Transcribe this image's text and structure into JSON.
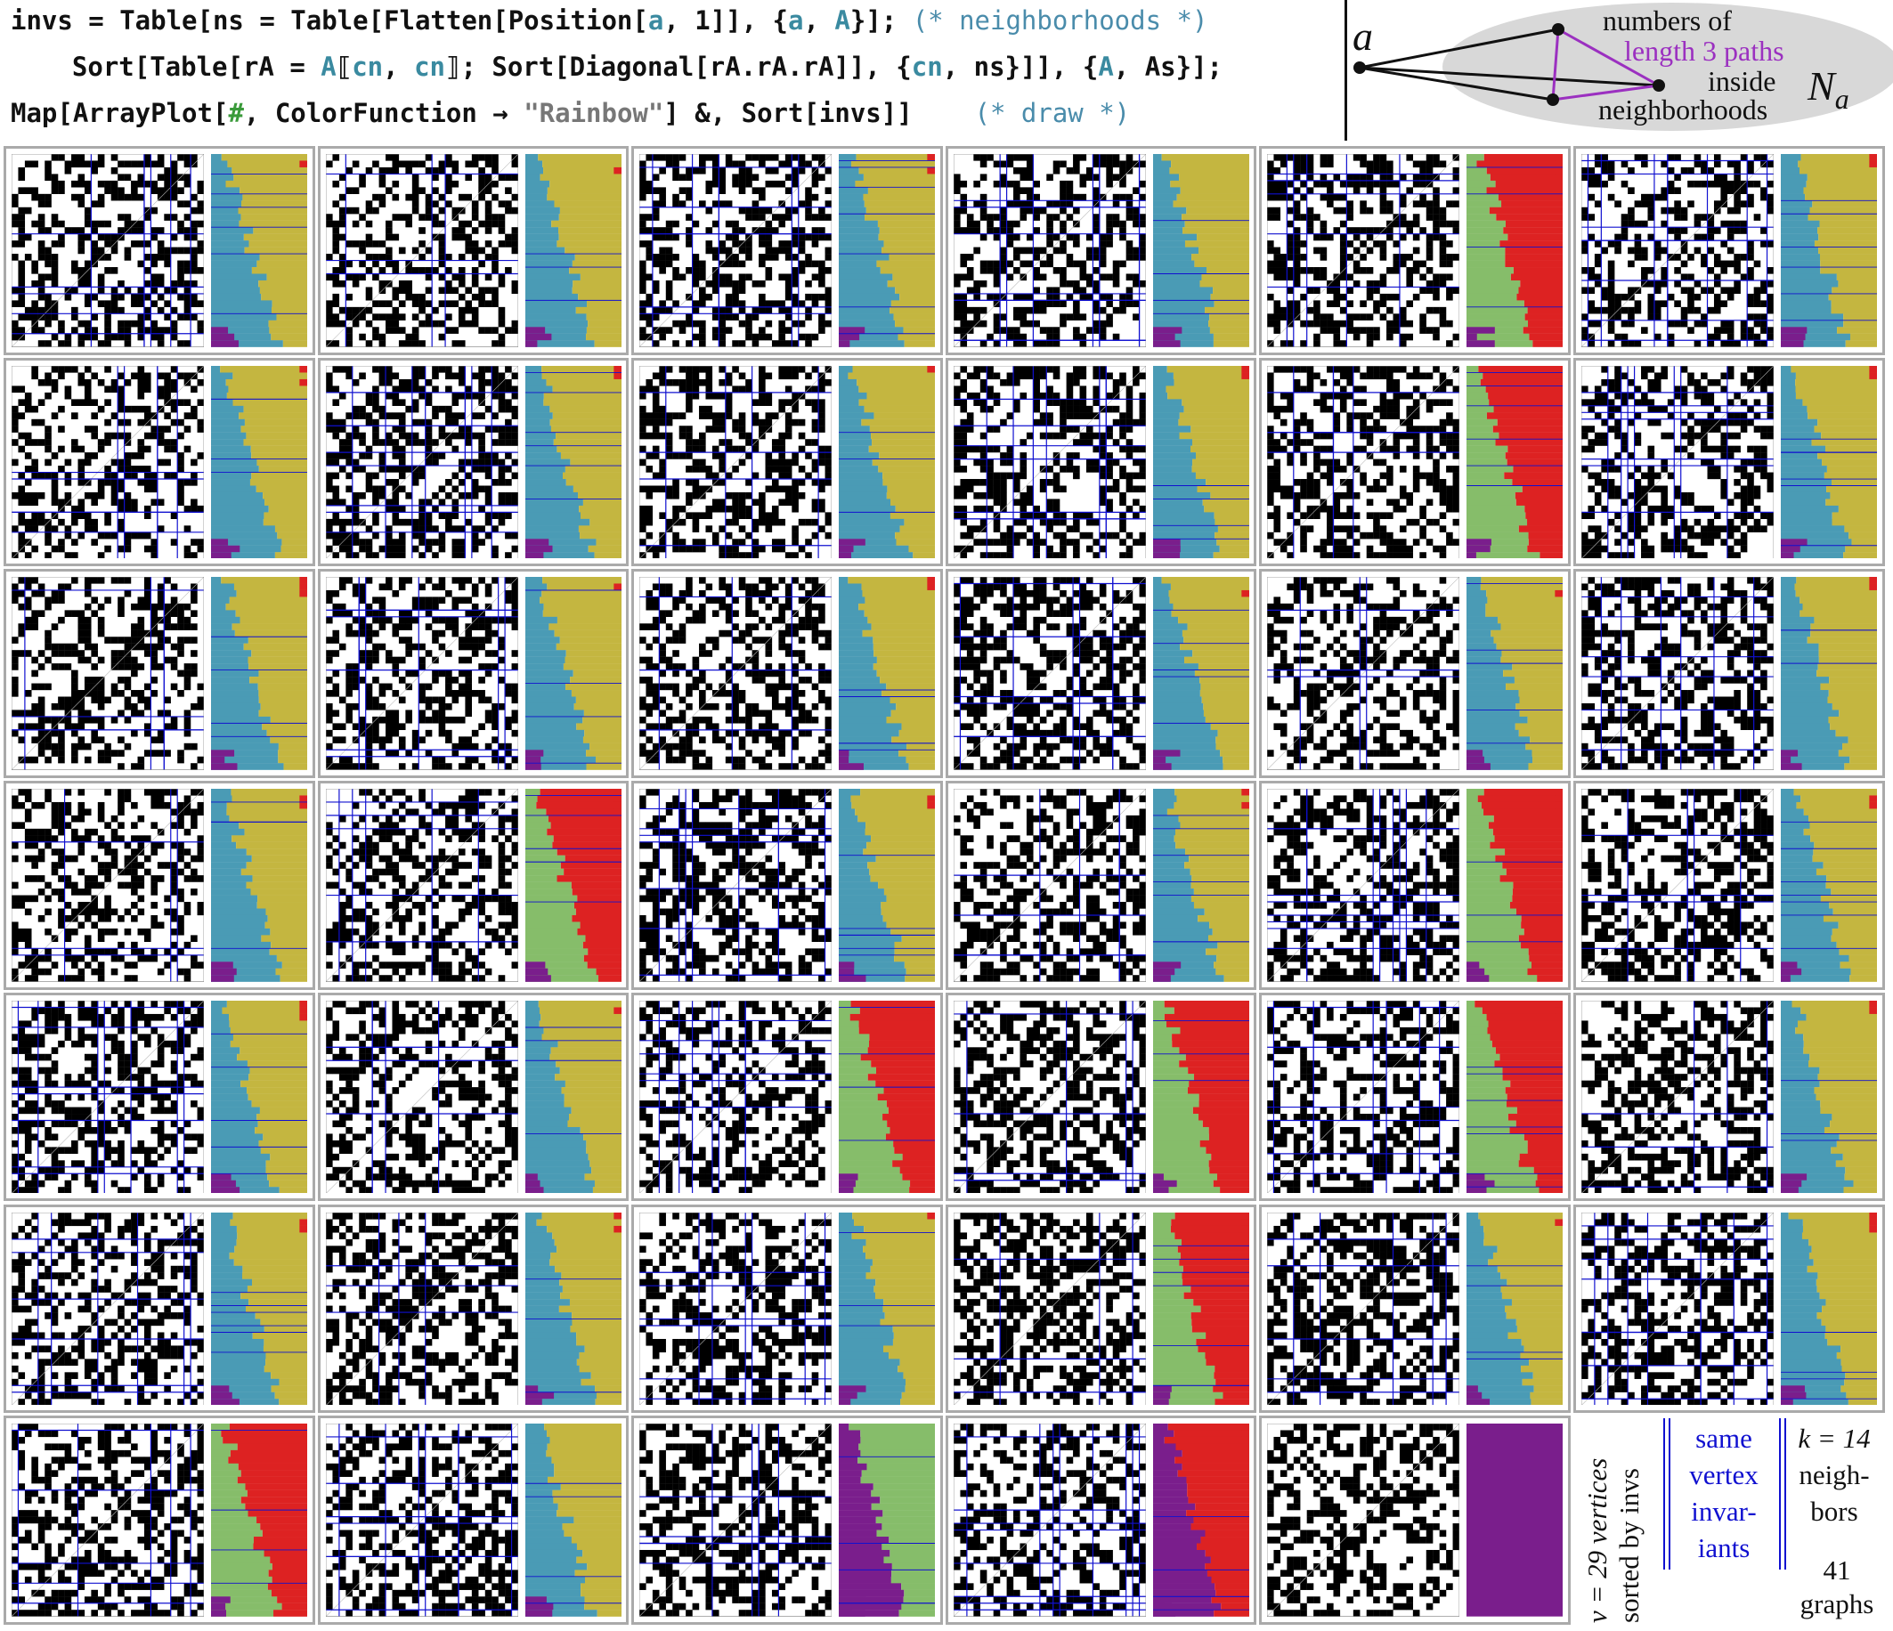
{
  "code": {
    "line1": {
      "pre": "invs = Table[ns = Table[Flatten[Position[",
      "a1": "a",
      "mid": ", 1]], {",
      "a2": "a",
      "comma": ", ",
      "a3": "A",
      "end": "}]; ",
      "comment": "(* neighborhoods *)"
    },
    "line2": {
      "pre": "  Sort[Table[rA = ",
      "a1": "A",
      "br1": "⟦",
      "a2": "cn",
      "comma1": ", ",
      "a3": "cn",
      "br2": "⟧; Sort[Diagonal[rA.rA.rA]], {",
      "a4": "cn",
      "mid": ", ns}]], {",
      "a5": "A",
      "end": ", As}];"
    },
    "line3": {
      "pre": "Map[ArrayPlot[",
      "hash": "#",
      "mid": ", ColorFunction → ",
      "str": "\"Rainbow\"",
      "end": "] &, Sort[invs]]",
      "comment": "(* draw *)"
    }
  },
  "diagram": {
    "vertex_label": "a",
    "text_line1": "numbers of",
    "text_line2": "length 3 paths",
    "text_line3": "inside",
    "text_line4": "neighborhoods",
    "n_label": "N",
    "n_sub": "a",
    "ellipse_color": "#d8d8d8",
    "highlight_color": "#9b30c0"
  },
  "grid": {
    "rows": 7,
    "cols": 6,
    "panels_shown": 41,
    "vertices": 29,
    "neighbors": 14,
    "colors": {
      "purple": "#7a1e8c",
      "teal": "#4a9bb5",
      "olive": "#c4b640",
      "green": "#86bd6a",
      "red": "#dd2222",
      "matrix_line": "#1010d0",
      "cell_border": "#aaaaaa"
    }
  },
  "legend": {
    "rotated_line1": "v = 29 vertices",
    "rotated_line2": "sorted by invs",
    "same_line1": "same",
    "same_line2": "vertex",
    "same_line3": "invar-",
    "same_line4": "iants",
    "k_line1": "k = 14",
    "k_line2": "neigh-",
    "k_line3": "bors",
    "graphs_count": "41",
    "graphs_word": "graphs"
  }
}
